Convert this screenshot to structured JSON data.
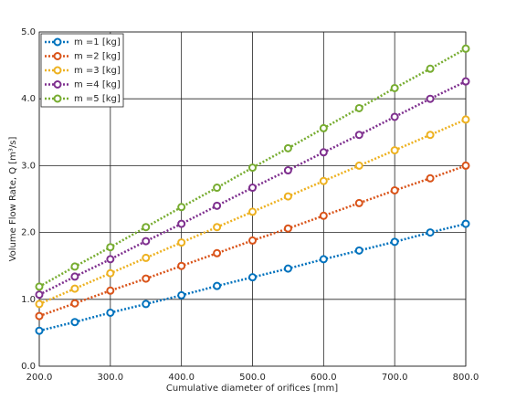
{
  "chart_data": {
    "type": "line",
    "xlabel": "Cumulative diameter of orifices [mm]",
    "ylabel": "Volume Flow Rate, Q [m³/s]",
    "x": [
      200,
      250,
      300,
      350,
      400,
      450,
      500,
      550,
      600,
      650,
      700,
      750,
      800
    ],
    "series": [
      {
        "name": "m =1 [kg]",
        "color": "#0072bd",
        "values": [
          0.53,
          0.66,
          0.8,
          0.93,
          1.06,
          1.2,
          1.33,
          1.46,
          1.6,
          1.73,
          1.86,
          2.0,
          2.13
        ]
      },
      {
        "name": "m =2 [kg]",
        "color": "#d95319",
        "values": [
          0.75,
          0.94,
          1.13,
          1.31,
          1.5,
          1.69,
          1.88,
          2.06,
          2.25,
          2.44,
          2.63,
          2.81,
          3.0
        ]
      },
      {
        "name": "m =3 [kg]",
        "color": "#edb120",
        "values": [
          0.93,
          1.16,
          1.39,
          1.62,
          1.85,
          2.08,
          2.31,
          2.54,
          2.77,
          3.0,
          3.23,
          3.46,
          3.69
        ]
      },
      {
        "name": "m =4 [kg]",
        "color": "#7e2f8e",
        "values": [
          1.07,
          1.34,
          1.6,
          1.87,
          2.13,
          2.4,
          2.67,
          2.93,
          3.2,
          3.46,
          3.73,
          4.0,
          4.26
        ]
      },
      {
        "name": "m =5 [kg]",
        "color": "#77ac30",
        "values": [
          1.19,
          1.49,
          1.78,
          2.08,
          2.38,
          2.67,
          2.97,
          3.26,
          3.56,
          3.86,
          4.16,
          4.45,
          4.75
        ]
      }
    ],
    "xlim": [
      200,
      800
    ],
    "xticks": [
      {
        "value": 200,
        "label": "200.0"
      },
      {
        "value": 300,
        "label": "300.0"
      },
      {
        "value": 400,
        "label": "400.0"
      },
      {
        "value": 500,
        "label": "500.0"
      },
      {
        "value": 600,
        "label": "600.0"
      },
      {
        "value": 700,
        "label": "700.0"
      },
      {
        "value": 800,
        "label": "800.0"
      }
    ],
    "ylim": [
      0,
      5
    ],
    "yticks": [
      {
        "value": 0,
        "label": "0.0"
      },
      {
        "value": 1,
        "label": "1.0"
      },
      {
        "value": 2,
        "label": "2.0"
      },
      {
        "value": 3,
        "label": "3.0"
      },
      {
        "value": 4,
        "label": "4.0"
      },
      {
        "value": 5,
        "label": "5.0"
      }
    ],
    "grid": true,
    "legend": "upper-left"
  }
}
